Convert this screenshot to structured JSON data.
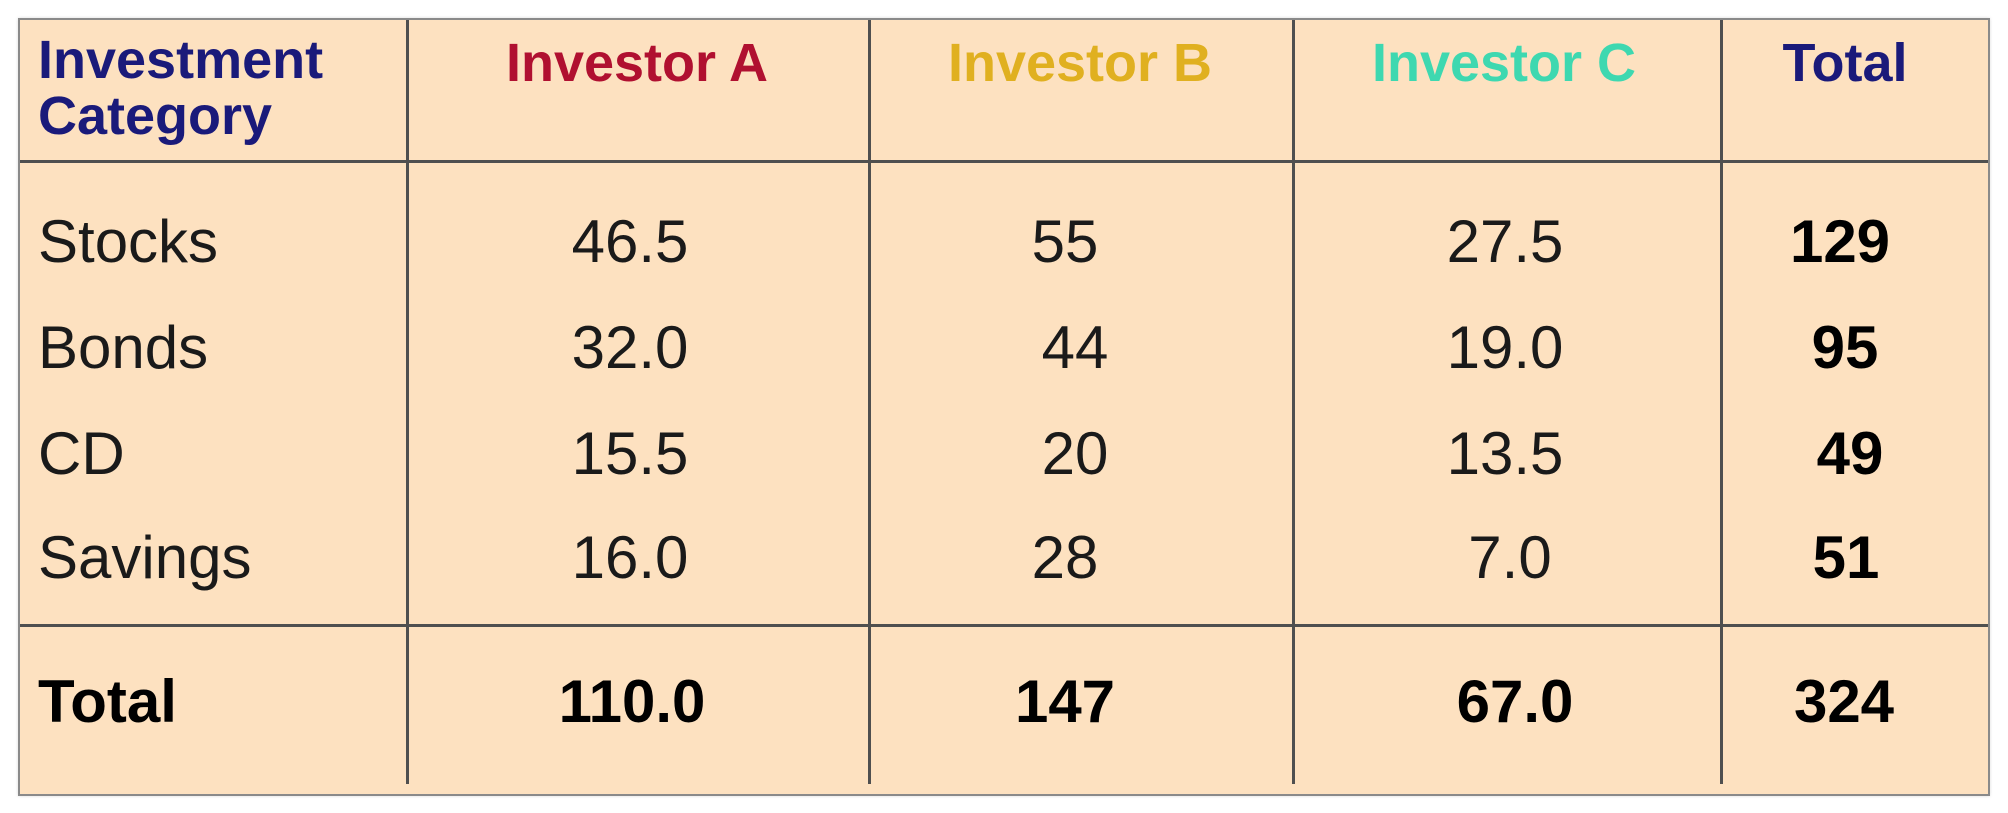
{
  "chart_data": {
    "type": "table",
    "columns": [
      "Investment Category",
      "Investor A",
      "Investor B",
      "Investor C",
      "Total"
    ],
    "header_colors": [
      "#1a1a7a",
      "#b01030",
      "#e0b020",
      "#3ed8b0",
      "#1a1a7a"
    ],
    "rows": [
      {
        "category": "Stocks",
        "values": [
          "46.5",
          "55",
          "27.5",
          "129"
        ]
      },
      {
        "category": "Bonds",
        "values": [
          "32.0",
          "44",
          "19.0",
          "95"
        ]
      },
      {
        "category": "CD",
        "values": [
          "15.5",
          "20",
          "13.5",
          "49"
        ]
      },
      {
        "category": "Savings",
        "values": [
          "16.0",
          "28",
          "7.0",
          "51"
        ]
      }
    ],
    "total_row": {
      "label": "Total",
      "values": [
        "110.0",
        "147",
        "67.0",
        "324"
      ]
    },
    "background_color": "#fde1c0",
    "grid_color": "#4f4f4f"
  }
}
